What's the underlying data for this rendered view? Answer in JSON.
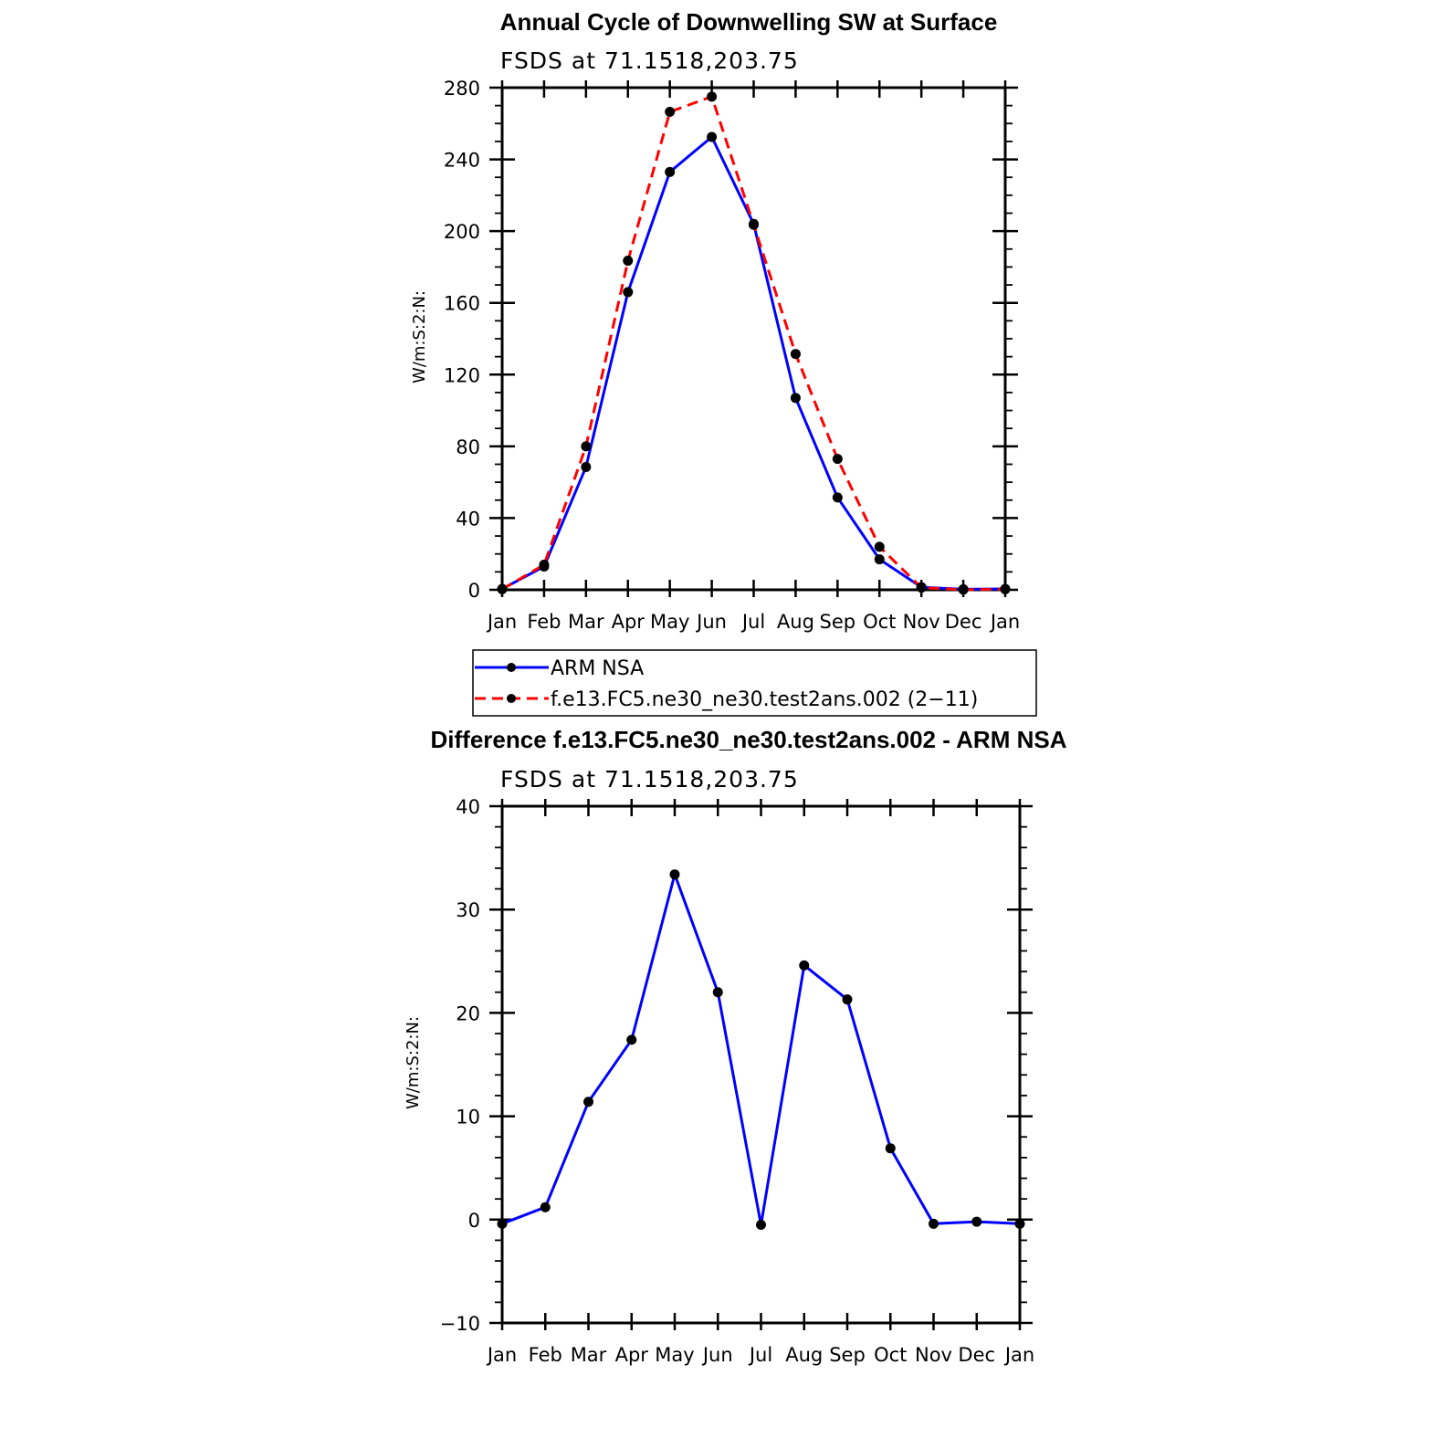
{
  "chart_data": [
    {
      "type": "line",
      "title": "Annual Cycle of Downwelling SW at Surface",
      "subtitle": "FSDS at 71.1518,203.75",
      "ylabel": "W/m:S:2:N:",
      "xlabel": "",
      "categories": [
        "Jan",
        "Feb",
        "Mar",
        "Apr",
        "May",
        "Jun",
        "Jul",
        "Aug",
        "Sep",
        "Oct",
        "Nov",
        "Dec",
        "Jan"
      ],
      "ylim": [
        0,
        280
      ],
      "yticks": [
        0,
        40,
        80,
        120,
        160,
        200,
        240,
        280
      ],
      "ytick_labels": [
        "0",
        "40",
        "80",
        "120",
        "160",
        "200",
        "240",
        "280"
      ],
      "grid": false,
      "legend": "bottom",
      "series": [
        {
          "name": "ARM NSA",
          "color": "#0000ff",
          "dash": "solid",
          "values": [
            0.5,
            13,
            68.5,
            166,
            233,
            252.5,
            204,
            107,
            51.5,
            17,
            1.5,
            0.3,
            0.5
          ]
        },
        {
          "name": "f.e13.FC5.ne30_ne30.test2ans.002 (2−11)",
          "color": "#ff0000",
          "dash": "dashed",
          "values": [
            0.3,
            14,
            80,
            183.5,
            266.5,
            275,
            203.5,
            131.5,
            73,
            24,
            1.2,
            0.1,
            0.3
          ]
        }
      ]
    },
    {
      "type": "line",
      "title": "Difference f.e13.FC5.ne30_ne30.test2ans.002 - ARM NSA",
      "subtitle": "FSDS at 71.1518,203.75",
      "ylabel": "W/m:S:2:N:",
      "xlabel": "",
      "categories": [
        "Jan",
        "Feb",
        "Mar",
        "Apr",
        "May",
        "Jun",
        "Jul",
        "Aug",
        "Sep",
        "Oct",
        "Nov",
        "Dec",
        "Jan"
      ],
      "ylim": [
        -10,
        40
      ],
      "yticks": [
        -10,
        0,
        10,
        20,
        30,
        40
      ],
      "ytick_labels": [
        "−10",
        "0",
        "10",
        "20",
        "30",
        "40"
      ],
      "grid": false,
      "series": [
        {
          "color": "#0000ff",
          "dash": "solid",
          "values": [
            -0.4,
            1.2,
            11.4,
            17.4,
            33.4,
            22,
            -0.5,
            24.6,
            21.3,
            6.9,
            -0.4,
            -0.2,
            -0.4
          ]
        }
      ]
    }
  ]
}
